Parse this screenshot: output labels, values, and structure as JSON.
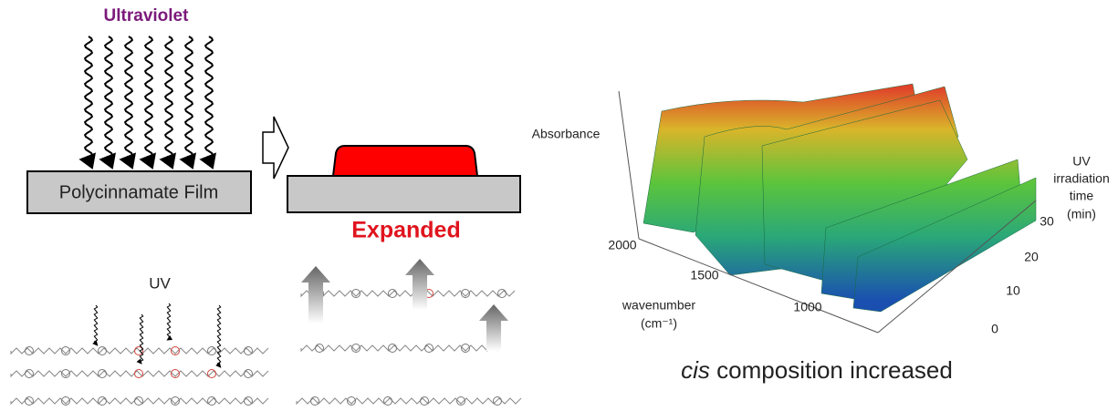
{
  "left_panel": {
    "uv_label": "Ultraviolet",
    "film_label": "Polycinnamate Film",
    "expanded_label": "Expanded",
    "uv_short": "UV"
  },
  "plot": {
    "z_axis_label": "Absorbance",
    "x_axis_label": [
      "wavenumber",
      "(cm⁻¹)"
    ],
    "x_ticks": [
      "2000",
      "1500",
      "1000"
    ],
    "y_axis_label": [
      "UV",
      "irradiation",
      "time",
      "(min)"
    ],
    "y_ticks": [
      "30",
      "20",
      "10",
      "0"
    ]
  },
  "caption": {
    "italic": "cis",
    "text": "composition increased"
  }
}
